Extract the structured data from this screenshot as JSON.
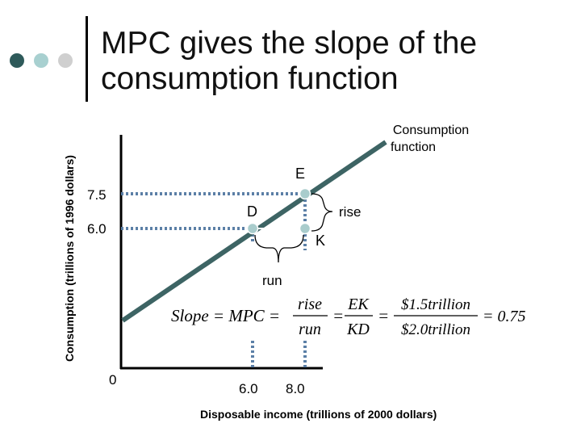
{
  "title": "MPC gives the slope of the\nconsumption function",
  "y_axis_label": "Consumption (trillions of 1996 dollars)",
  "x_axis_label": "Disposable income (trillions of 2000 dollars)",
  "origin_label": "0",
  "y_ticks": [
    "7.5",
    "6.0"
  ],
  "x_ticks": [
    "6.0",
    "8.0"
  ],
  "curve_label": "Consumption\nfunction",
  "points": {
    "E": "E",
    "D": "D",
    "K": "K"
  },
  "rise_label": "rise",
  "run_label": "run",
  "formula": {
    "lhs": "Slope = MPC =",
    "rise": "rise",
    "run": "run",
    "ek": "EK",
    "kd": "KD",
    "num": "$1.5trillion",
    "den": "$2.0trillion",
    "result": "= 0.75"
  },
  "colors": {
    "line": "#3d6464",
    "point": "#a9cccc",
    "dotted": "#5b7fa6"
  }
}
